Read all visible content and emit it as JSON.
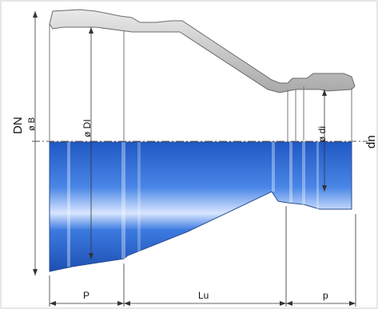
{
  "labels": {
    "dn_large": "DN",
    "od_large": "ø B",
    "id_large": "ø DI",
    "id_small": "ø di",
    "dn_small": "dn",
    "length_socket_large": "P",
    "length_body": "Lu",
    "length_socket_small": "p"
  },
  "colors": {
    "body_blue": "#2a6fd6",
    "body_highlight": "#cfe0ff",
    "outline": "#6b6b6b",
    "wall_grey": "#bdbdbd"
  }
}
